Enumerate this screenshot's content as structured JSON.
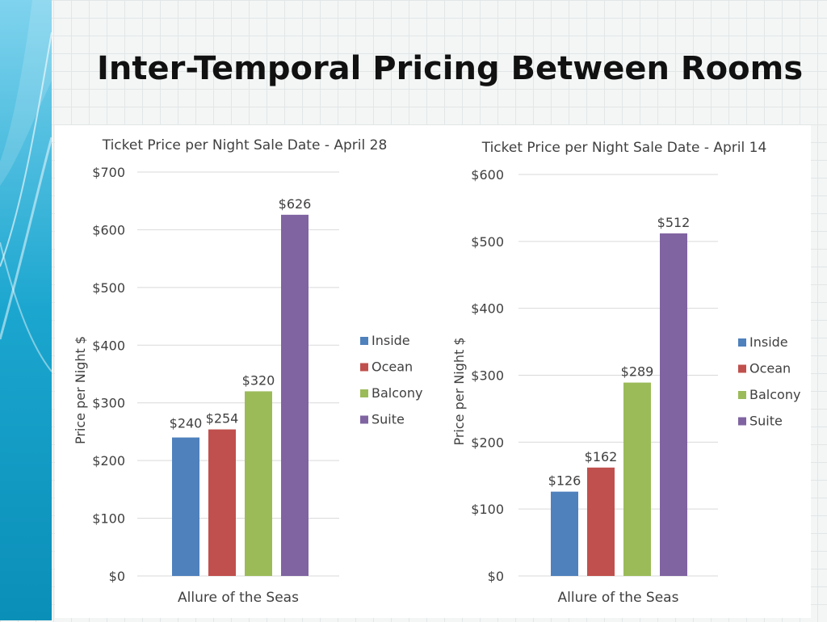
{
  "slide": {
    "title": "Inter-Temporal Pricing Between Rooms"
  },
  "colors": {
    "Inside": "#4f81bd",
    "Ocean": "#c0504d",
    "Balcony": "#9bbb59",
    "Suite": "#8064a2",
    "gridline": "#d9d9d9",
    "band_dark": "#0a8fb8",
    "band_light": "#5bc4e4"
  },
  "chart_data": [
    {
      "type": "bar",
      "title": "Ticket Price per Night Sale Date - April 28",
      "xlabel": "Allure of the Seas",
      "ylabel": "Price per Night $",
      "categories": [
        "Allure of the Seas"
      ],
      "series": [
        {
          "name": "Inside",
          "values": [
            240
          ],
          "label": "$240"
        },
        {
          "name": "Ocean",
          "values": [
            254
          ],
          "label": "$254"
        },
        {
          "name": "Balcony",
          "values": [
            320
          ],
          "label": "$320"
        },
        {
          "name": "Suite",
          "values": [
            626
          ],
          "label": "$626"
        }
      ],
      "ylim": [
        0,
        700
      ],
      "yticks": [
        "$0",
        "$100",
        "$200",
        "$300",
        "$400",
        "$500",
        "$600",
        "$700"
      ],
      "grid": true,
      "legend": "right"
    },
    {
      "type": "bar",
      "title": "Ticket Price per Night Sale Date - April 14",
      "xlabel": "Allure of the Seas",
      "ylabel": "Price per Night $",
      "categories": [
        "Allure of the Seas"
      ],
      "series": [
        {
          "name": "Inside",
          "values": [
            126
          ],
          "label": "$126"
        },
        {
          "name": "Ocean",
          "values": [
            162
          ],
          "label": "$162"
        },
        {
          "name": "Balcony",
          "values": [
            289
          ],
          "label": "$289"
        },
        {
          "name": "Suite",
          "values": [
            512
          ],
          "label": "$512"
        }
      ],
      "ylim": [
        0,
        600
      ],
      "yticks": [
        "$0",
        "$100",
        "$200",
        "$300",
        "$400",
        "$500",
        "$600"
      ],
      "grid": true,
      "legend": "right"
    }
  ]
}
